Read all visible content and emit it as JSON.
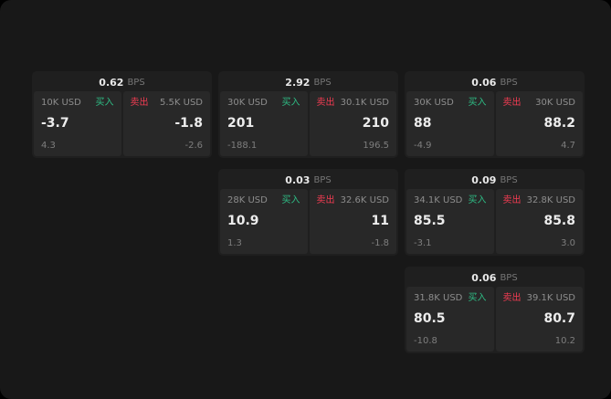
{
  "colors": {
    "buy_green": "#2ebd85",
    "sell_red": "#f23c52",
    "background": "#181818",
    "card": "#1f1f1f",
    "panel": "#282828"
  },
  "cards": [
    {
      "bps_value": "0.62",
      "bps_label": "BPS",
      "buy": {
        "amount": "10K USD",
        "label": "买入",
        "price": "-3.7",
        "delta": "4.3"
      },
      "sell": {
        "label": "卖出",
        "amount": "5.5K USD",
        "price": "-1.8",
        "delta": "-2.6"
      }
    },
    {
      "bps_value": "2.92",
      "bps_label": "BPS",
      "buy": {
        "amount": "30K USD",
        "label": "买入",
        "price": "201",
        "delta": "-188.1"
      },
      "sell": {
        "label": "卖出",
        "amount": "30.1K USD",
        "price": "210",
        "delta": "196.5"
      }
    },
    {
      "bps_value": "0.06",
      "bps_label": "BPS",
      "buy": {
        "amount": "30K USD",
        "label": "买入",
        "price": "88",
        "delta": "-4.9"
      },
      "sell": {
        "label": "卖出",
        "amount": "30K USD",
        "price": "88.2",
        "delta": "4.7"
      }
    },
    {
      "bps_value": "0.03",
      "bps_label": "BPS",
      "buy": {
        "amount": "28K USD",
        "label": "买入",
        "price": "10.9",
        "delta": "1.3"
      },
      "sell": {
        "label": "卖出",
        "amount": "32.6K USD",
        "price": "11",
        "delta": "-1.8"
      }
    },
    {
      "bps_value": "0.09",
      "bps_label": "BPS",
      "buy": {
        "amount": "34.1K USD",
        "label": "买入",
        "price": "85.5",
        "delta": "-3.1"
      },
      "sell": {
        "label": "卖出",
        "amount": "32.8K USD",
        "price": "85.8",
        "delta": "3.0"
      }
    },
    {
      "bps_value": "0.06",
      "bps_label": "BPS",
      "buy": {
        "amount": "31.8K USD",
        "label": "买入",
        "price": "80.5",
        "delta": "-10.8"
      },
      "sell": {
        "label": "卖出",
        "amount": "39.1K USD",
        "price": "80.7",
        "delta": "10.2"
      }
    }
  ]
}
